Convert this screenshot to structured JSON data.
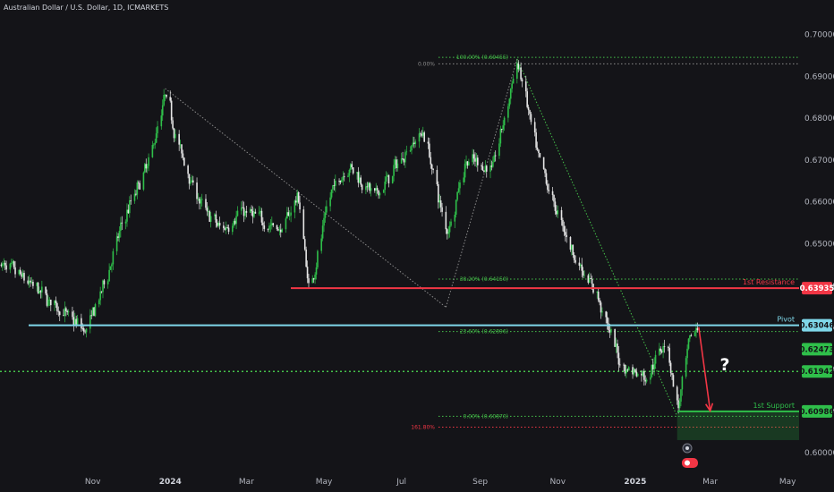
{
  "title": "Australian Dollar / U.S. Dollar, 1D, ICMARKETS",
  "colors": {
    "background": "#141418",
    "axis_text": "#b2b5be",
    "bull": "#2fbf4a",
    "bear": "#e6e6e6",
    "resistance": "#f23645",
    "pivot": "#7fd8ea",
    "support": "#2fbf4a",
    "fib_dotted": "#45c24a",
    "trend_dotted": "#8a8a8a"
  },
  "chart_data": {
    "type": "candlestick",
    "symbol": "Australian Dollar / U.S. Dollar",
    "interval": "1D",
    "source": "ICMARKETS",
    "ylim": [
      0.597,
      0.704
    ],
    "xlim": [
      "2023-08-20",
      "2025-05-10"
    ],
    "y_ticks": [
      0.6,
      0.61,
      0.62,
      0.63,
      0.64,
      0.65,
      0.66,
      0.67,
      0.68,
      0.69,
      0.7
    ],
    "x_ticks": [
      {
        "label": "Nov",
        "date": "2023-11-01"
      },
      {
        "label": "2024",
        "date": "2024-01-01",
        "bold": true
      },
      {
        "label": "Mar",
        "date": "2024-03-01"
      },
      {
        "label": "May",
        "date": "2024-05-01"
      },
      {
        "label": "Jul",
        "date": "2024-07-01"
      },
      {
        "label": "Sep",
        "date": "2024-09-01"
      },
      {
        "label": "Nov",
        "date": "2024-11-01"
      },
      {
        "label": "2025",
        "date": "2025-01-01",
        "bold": true
      },
      {
        "label": "Mar",
        "date": "2025-03-01"
      },
      {
        "label": "May",
        "date": "2025-05-01"
      }
    ],
    "price_path": [
      [
        "2023-08-20",
        0.645
      ],
      [
        "2023-09-05",
        0.642
      ],
      [
        "2023-09-25",
        0.637
      ],
      [
        "2023-10-10",
        0.633
      ],
      [
        "2023-10-26",
        0.629
      ],
      [
        "2023-11-08",
        0.639
      ],
      [
        "2023-11-25",
        0.656
      ],
      [
        "2023-12-15",
        0.67
      ],
      [
        "2023-12-28",
        0.686
      ],
      [
        "2024-01-08",
        0.672
      ],
      [
        "2024-01-25",
        0.659
      ],
      [
        "2024-02-10",
        0.653
      ],
      [
        "2024-02-25",
        0.658
      ],
      [
        "2024-03-10",
        0.656
      ],
      [
        "2024-03-28",
        0.653
      ],
      [
        "2024-04-10",
        0.662
      ],
      [
        "2024-04-19",
        0.638
      ],
      [
        "2024-05-05",
        0.662
      ],
      [
        "2024-05-20",
        0.669
      ],
      [
        "2024-06-10",
        0.661
      ],
      [
        "2024-06-25",
        0.668
      ],
      [
        "2024-07-08",
        0.674
      ],
      [
        "2024-07-18",
        0.677
      ],
      [
        "2024-08-05",
        0.652
      ],
      [
        "2024-08-20",
        0.67
      ],
      [
        "2024-09-10",
        0.668
      ],
      [
        "2024-09-30",
        0.694
      ],
      [
        "2024-10-15",
        0.671
      ],
      [
        "2024-10-30",
        0.658
      ],
      [
        "2024-11-15",
        0.646
      ],
      [
        "2024-12-01",
        0.638
      ],
      [
        "2024-12-20",
        0.621
      ],
      [
        "2025-01-10",
        0.618
      ],
      [
        "2025-01-25",
        0.628
      ],
      [
        "2025-02-03",
        0.609
      ],
      [
        "2025-02-12",
        0.627
      ],
      [
        "2025-02-19",
        0.63
      ]
    ],
    "levels": [
      {
        "name": "1st Resistance",
        "value": 0.63935
      },
      {
        "name": "Pivot",
        "value": 0.63046
      },
      {
        "name": "1st Support",
        "value": 0.60986
      }
    ],
    "price_tags": [
      0.63935,
      0.63046,
      0.62473,
      0.61942,
      0.60986
    ],
    "current_price": 0.62473,
    "intermediate_level": 0.61942,
    "fibonacci": [
      {
        "label": "100.00% (0.69455)",
        "value": 0.69455
      },
      {
        "label": "0.00%",
        "value": 0.693
      },
      {
        "label": "38.20% (0.64150)",
        "value": 0.6415
      },
      {
        "label": "23.60% (0.62896)",
        "value": 0.62896
      },
      {
        "label": "0.00% (0.60870)",
        "value": 0.6087
      },
      {
        "label": "161.80%",
        "value": 0.6061
      }
    ],
    "trendlines": [
      {
        "from": [
          "2023-12-28",
          0.6871
        ],
        "to": [
          "2024-08-05",
          0.6348
        ],
        "style": "dotted",
        "color": "#8a8a8a"
      },
      {
        "from": [
          "2024-08-05",
          0.6348
        ],
        "to": [
          "2024-09-30",
          0.6942
        ],
        "style": "dotted",
        "color": "#8a8a8a"
      },
      {
        "from": [
          "2024-09-30",
          0.6942
        ],
        "to": [
          "2025-02-03",
          0.6087
        ],
        "style": "dotted",
        "color": "#45c24a"
      }
    ],
    "support_zone": {
      "from": "2025-02-03",
      "to": "2025-05-10",
      "top": 0.60986,
      "bottom": 0.603
    },
    "projection_arrow": {
      "from": [
        "2025-02-20",
        0.63
      ],
      "to": [
        "2025-03-01",
        0.61
      ]
    },
    "annotation": "?"
  }
}
